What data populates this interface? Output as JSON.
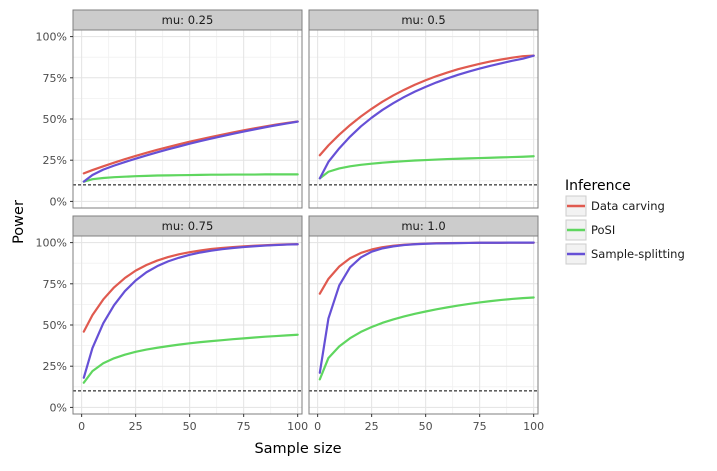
{
  "chart_data": {
    "type": "line",
    "xlabel": "Sample size",
    "ylabel": "Power",
    "xlim": [
      -4,
      102
    ],
    "ylim": [
      -0.04,
      1.04
    ],
    "x_ticks": [
      0,
      25,
      50,
      75,
      100
    ],
    "x_tick_labels": [
      "0",
      "25",
      "50",
      "75",
      "100"
    ],
    "y_ticks": [
      0,
      0.25,
      0.5,
      0.75,
      1.0
    ],
    "y_tick_labels": [
      "0%",
      "25%",
      "50%",
      "75%",
      "100%"
    ],
    "reference_line": {
      "y": 0.1,
      "style": "dashed"
    },
    "legend": {
      "title": "Inference",
      "position": "right",
      "entries": [
        {
          "name": "Data carving",
          "color": "#e05a4f"
        },
        {
          "name": "PoSI",
          "color": "#5fd65f"
        },
        {
          "name": "Sample-splitting",
          "color": "#6650d6"
        }
      ]
    },
    "x": [
      1,
      5,
      10,
      15,
      20,
      25,
      30,
      35,
      40,
      45,
      50,
      55,
      60,
      65,
      70,
      75,
      80,
      85,
      90,
      95,
      100
    ],
    "panels": [
      {
        "title": "mu: 0.25",
        "series": [
          {
            "name": "Data carving",
            "values": [
              0.17,
              0.19,
              0.213,
              0.235,
              0.256,
              0.276,
              0.295,
              0.313,
              0.33,
              0.346,
              0.362,
              0.377,
              0.391,
              0.405,
              0.418,
              0.431,
              0.443,
              0.455,
              0.466,
              0.476,
              0.485
            ]
          },
          {
            "name": "PoSI",
            "values": [
              0.12,
              0.135,
              0.142,
              0.147,
              0.15,
              0.153,
              0.155,
              0.157,
              0.158,
              0.159,
              0.16,
              0.161,
              0.162,
              0.162,
              0.163,
              0.163,
              0.163,
              0.164,
              0.164,
              0.164,
              0.164
            ]
          },
          {
            "name": "Sample-splitting",
            "values": [
              0.12,
              0.16,
              0.193,
              0.217,
              0.239,
              0.259,
              0.279,
              0.298,
              0.316,
              0.333,
              0.35,
              0.366,
              0.381,
              0.396,
              0.41,
              0.424,
              0.437,
              0.45,
              0.462,
              0.473,
              0.484
            ]
          }
        ]
      },
      {
        "title": "mu: 0.5",
        "series": [
          {
            "name": "Data carving",
            "values": [
              0.28,
              0.34,
              0.405,
              0.463,
              0.515,
              0.562,
              0.605,
              0.643,
              0.677,
              0.708,
              0.735,
              0.76,
              0.782,
              0.802,
              0.819,
              0.835,
              0.849,
              0.861,
              0.872,
              0.881,
              0.885
            ]
          },
          {
            "name": "PoSI",
            "values": [
              0.14,
              0.18,
              0.2,
              0.213,
              0.222,
              0.229,
              0.235,
              0.24,
              0.244,
              0.248,
              0.251,
              0.254,
              0.257,
              0.259,
              0.261,
              0.263,
              0.265,
              0.267,
              0.269,
              0.271,
              0.274
            ]
          },
          {
            "name": "Sample-splitting",
            "values": [
              0.14,
              0.24,
              0.322,
              0.393,
              0.455,
              0.508,
              0.555,
              0.596,
              0.633,
              0.666,
              0.695,
              0.722,
              0.746,
              0.768,
              0.788,
              0.806,
              0.823,
              0.838,
              0.853,
              0.866,
              0.884
            ]
          }
        ]
      },
      {
        "title": "mu: 0.75",
        "series": [
          {
            "name": "Data carving",
            "values": [
              0.46,
              0.56,
              0.655,
              0.728,
              0.785,
              0.83,
              0.864,
              0.891,
              0.912,
              0.929,
              0.942,
              0.952,
              0.961,
              0.967,
              0.973,
              0.977,
              0.981,
              0.984,
              0.987,
              0.989,
              0.99
            ]
          },
          {
            "name": "PoSI",
            "values": [
              0.15,
              0.22,
              0.268,
              0.298,
              0.32,
              0.337,
              0.351,
              0.362,
              0.372,
              0.381,
              0.389,
              0.396,
              0.402,
              0.408,
              0.414,
              0.419,
              0.424,
              0.429,
              0.433,
              0.437,
              0.441
            ]
          },
          {
            "name": "Sample-splitting",
            "values": [
              0.18,
              0.36,
              0.51,
              0.62,
              0.705,
              0.77,
              0.82,
              0.857,
              0.886,
              0.908,
              0.926,
              0.94,
              0.951,
              0.96,
              0.967,
              0.973,
              0.978,
              0.982,
              0.985,
              0.988,
              0.99
            ]
          }
        ]
      },
      {
        "title": "mu: 1.0",
        "series": [
          {
            "name": "Data carving",
            "values": [
              0.69,
              0.78,
              0.855,
              0.905,
              0.937,
              0.958,
              0.972,
              0.981,
              0.987,
              0.991,
              0.994,
              0.996,
              0.997,
              0.998,
              0.998,
              0.999,
              0.999,
              0.999,
              1.0,
              1.0,
              1.0
            ]
          },
          {
            "name": "PoSI",
            "values": [
              0.17,
              0.3,
              0.37,
              0.42,
              0.458,
              0.488,
              0.513,
              0.534,
              0.552,
              0.568,
              0.582,
              0.595,
              0.607,
              0.618,
              0.628,
              0.637,
              0.645,
              0.652,
              0.658,
              0.663,
              0.667
            ]
          },
          {
            "name": "Sample-splitting",
            "values": [
              0.21,
              0.54,
              0.74,
              0.85,
              0.91,
              0.945,
              0.965,
              0.977,
              0.985,
              0.99,
              0.993,
              0.995,
              0.996,
              0.997,
              0.998,
              0.999,
              0.999,
              0.999,
              1.0,
              1.0,
              1.0
            ]
          }
        ]
      }
    ]
  }
}
